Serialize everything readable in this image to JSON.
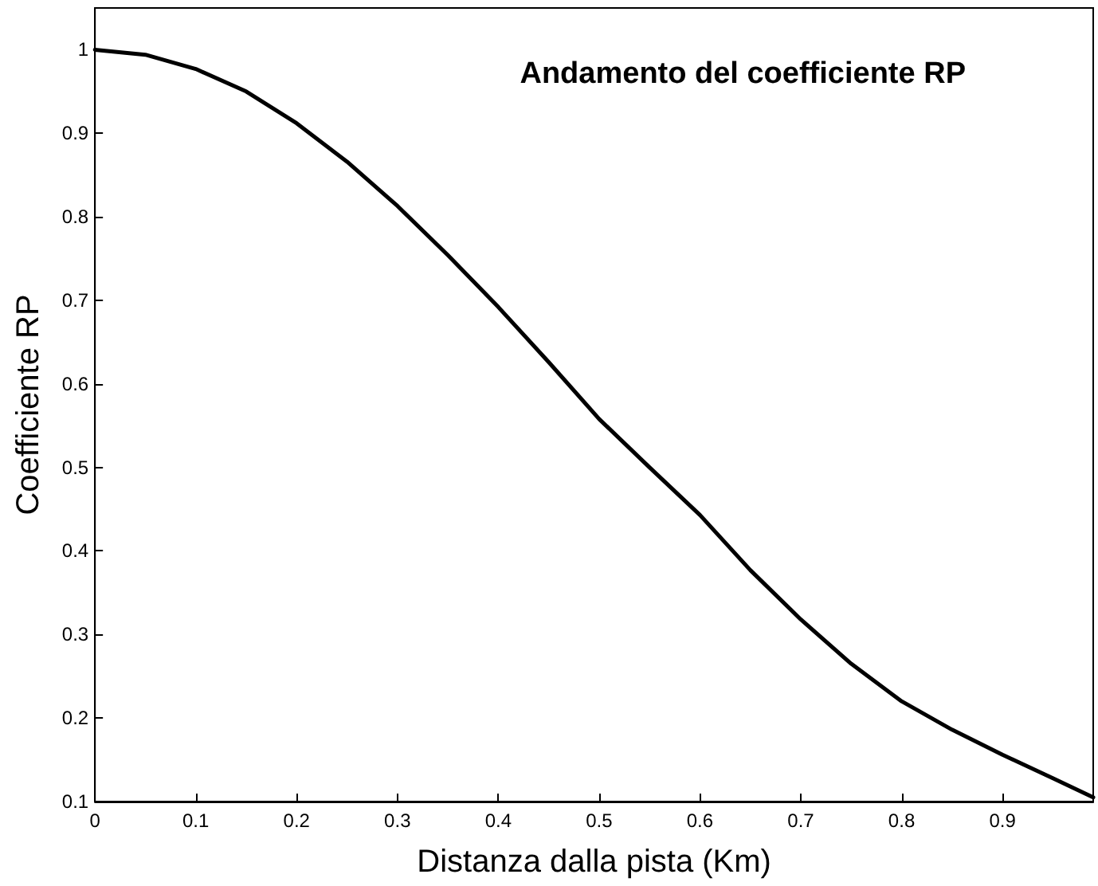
{
  "chart_data": {
    "type": "line",
    "title": "Andamento del coefficiente RP",
    "xlabel": "Distanza dalla pista (Km)",
    "ylabel": "Coefficiente RP",
    "x": [
      0,
      0.05,
      0.1,
      0.15,
      0.2,
      0.25,
      0.3,
      0.35,
      0.4,
      0.45,
      0.5,
      0.55,
      0.6,
      0.65,
      0.7,
      0.75,
      0.8,
      0.85,
      0.9,
      0.95,
      0.99
    ],
    "series": [
      {
        "color": "#000000",
        "values": [
          1,
          0.994,
          0.977,
          0.95,
          0.912,
          0.866,
          0.813,
          0.754,
          0.692,
          0.626,
          0.558,
          0.5,
          0.443,
          0.377,
          0.318,
          0.265,
          0.22,
          0.186,
          0.156,
          0.128,
          0.105
        ]
      }
    ],
    "xlim": [
      0,
      0.99
    ],
    "xticks": [
      0,
      0.1,
      0.2,
      0.3,
      0.4,
      0.5,
      0.6,
      0.7,
      0.8,
      0.9
    ],
    "ylim": [
      0.1,
      1.05
    ],
    "yticks": [
      0.1,
      0.2,
      0.3,
      0.4,
      0.5,
      0.6,
      0.7,
      0.8,
      0.9,
      1
    ],
    "grid": false,
    "marker": "none",
    "line_style": "solid"
  }
}
